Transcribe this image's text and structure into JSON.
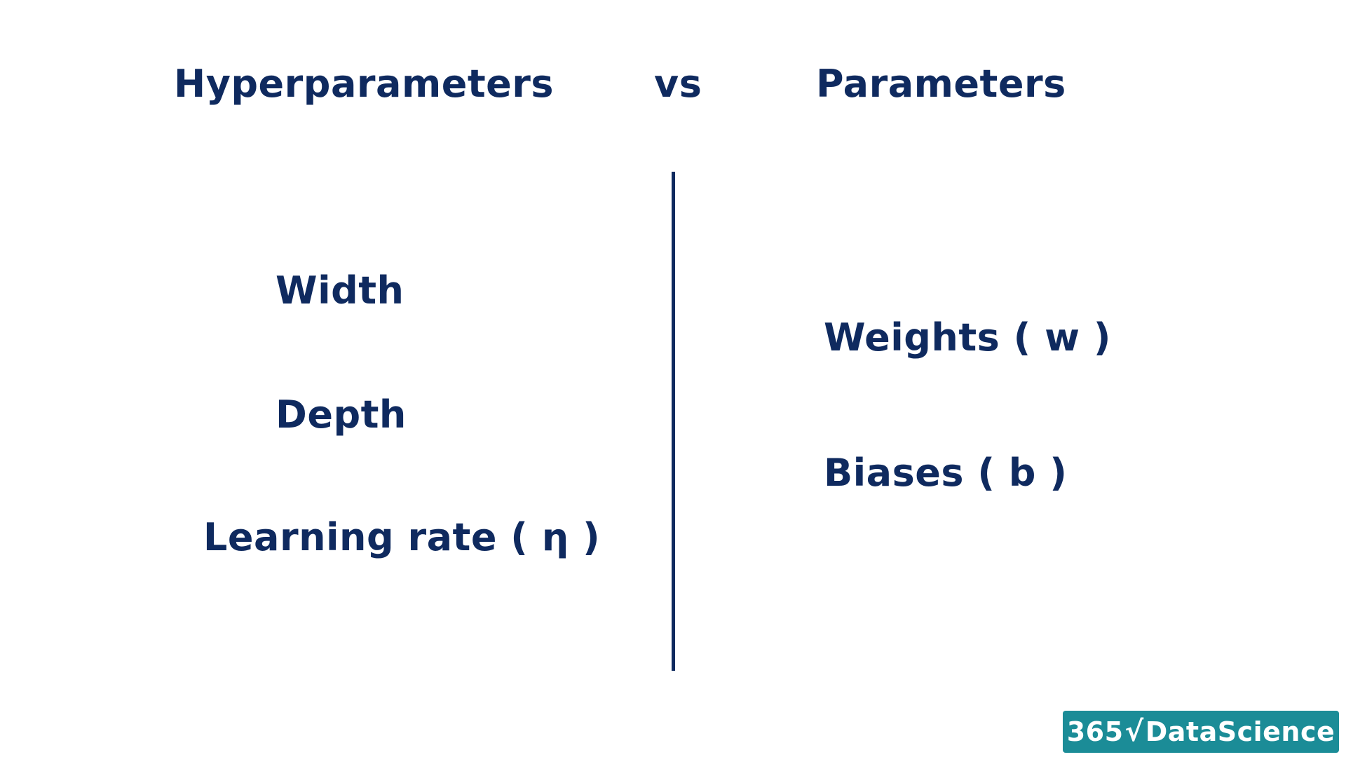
{
  "headings": {
    "left": "Hyperparameters",
    "middle": "vs",
    "right": "Parameters"
  },
  "hyperparameters": [
    "Width",
    "Depth",
    "Learning rate ( η )"
  ],
  "parameters": [
    "Weights ( w )",
    "Biases ( b )"
  ],
  "logo": {
    "number": "365",
    "symbol": "√",
    "name": "DataScience"
  },
  "colors": {
    "text": "#0f2a5f",
    "logo_bg": "#1b8c97",
    "background": "#ffffff"
  }
}
